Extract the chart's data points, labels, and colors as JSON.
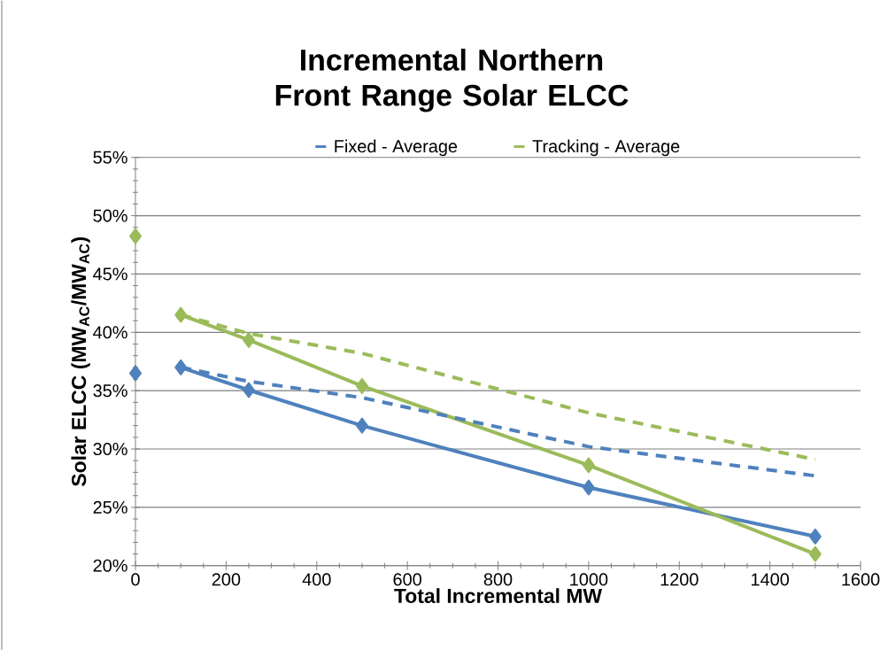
{
  "chart_data": {
    "type": "line",
    "title": "Incremental Northern Front Range Solar ELCC",
    "xlabel": "Total Incremental MW",
    "ylabel": "Solar ELCC  (MW$_{AC}$/MW$_{AC}$)",
    "xlim": [
      0,
      1600
    ],
    "xticks": [
      0,
      200,
      400,
      600,
      800,
      1000,
      1200,
      1400,
      1600
    ],
    "ylim": [
      20,
      55
    ],
    "yticks": [
      {
        "value": 20,
        "label": "20%"
      },
      {
        "value": 25,
        "label": "25%"
      },
      {
        "value": 30,
        "label": "30%"
      },
      {
        "value": 35,
        "label": "35%"
      },
      {
        "value": 40,
        "label": "40%"
      },
      {
        "value": 45,
        "label": "45%"
      },
      {
        "value": 50,
        "label": "50%"
      },
      {
        "value": 55,
        "label": "55%"
      }
    ],
    "grid": "y",
    "legend": "top",
    "series": [
      {
        "color": "#4f81bd",
        "marker": "diamond",
        "line_style": "solid",
        "x": [
          100,
          250,
          500,
          1000,
          1500
        ],
        "values": [
          37.0,
          35.05,
          32.0,
          26.7,
          22.5
        ]
      },
      {
        "color": "#9bbb59",
        "marker": "diamond",
        "line_style": "solid",
        "x": [
          100,
          250,
          500,
          1000,
          1500
        ],
        "values": [
          41.5,
          39.35,
          35.4,
          28.6,
          21.0
        ]
      },
      {
        "type": "scatter",
        "color": "#4f81bd",
        "marker": "diamond",
        "x": [
          0
        ],
        "values": [
          36.5
        ]
      },
      {
        "type": "scatter",
        "color": "#9bbb59",
        "marker": "diamond",
        "x": [
          0
        ],
        "values": [
          48.25
        ]
      },
      {
        "name": "Fixed - Average",
        "color": "#4f81bd",
        "marker": "none",
        "line_style": "dashed",
        "x": [
          100,
          250,
          500,
          1000,
          1500
        ],
        "values": [
          37.0,
          35.8,
          34.4,
          30.2,
          27.7
        ]
      },
      {
        "name": "Tracking - Average",
        "color": "#9bbb59",
        "marker": "none",
        "line_style": "dashed",
        "x": [
          100,
          250,
          500,
          1000,
          1500
        ],
        "values": [
          41.5,
          39.9,
          38.2,
          33.1,
          29.1
        ]
      }
    ]
  }
}
